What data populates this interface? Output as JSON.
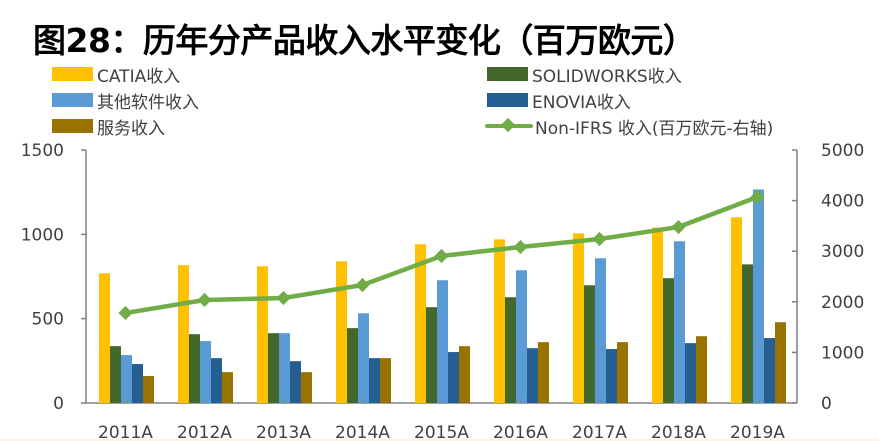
{
  "title": "图28：历年分产品收入水平变化（百万欧元）",
  "legend": {
    "catia": "CATIA收入",
    "other": "其他软件收入",
    "services": "服务收入",
    "solidworks": "SOLIDWORKS收入",
    "enovia": "ENOVIA收入",
    "nonifrs": "Non-IFRS 收入(百万欧元-右轴)"
  },
  "colors": {
    "catia": "#FFC000",
    "solidworks": "#43682B",
    "other": "#5B9BD5",
    "enovia": "#255E91",
    "services": "#997300",
    "nonifrs": "#70AD47",
    "axis": "#808080",
    "text": "#404040"
  },
  "chart_data": {
    "type": "bar",
    "title": "图28：历年分产品收入水平变化（百万欧元）",
    "xlabel": "",
    "ylabel": "",
    "categories": [
      "2011A",
      "2012A",
      "2013A",
      "2014A",
      "2015A",
      "2016A",
      "2017A",
      "2018A",
      "2019A"
    ],
    "series": [
      {
        "name": "CATIA收入",
        "type": "bar",
        "axis": "left",
        "values": [
          769,
          817,
          811,
          840,
          941,
          970,
          1006,
          1040,
          1101
        ]
      },
      {
        "name": "SOLIDWORKS收入",
        "type": "bar",
        "axis": "left",
        "values": [
          337,
          408,
          414,
          444,
          568,
          627,
          698,
          740,
          822
        ]
      },
      {
        "name": "其他软件收入",
        "type": "bar",
        "axis": "left",
        "values": [
          284,
          367,
          414,
          532,
          728,
          787,
          858,
          959,
          1266
        ]
      },
      {
        "name": "ENOVIA收入",
        "type": "bar",
        "axis": "left",
        "values": [
          231,
          266,
          248,
          266,
          302,
          325,
          320,
          355,
          385
        ]
      },
      {
        "name": "服务收入",
        "type": "bar",
        "axis": "left",
        "values": [
          160,
          183,
          183,
          266,
          337,
          361,
          361,
          396,
          479
        ]
      },
      {
        "name": "Non-IFRS 收入(百万欧元-右轴)",
        "type": "line",
        "axis": "right",
        "values": [
          1779,
          2036,
          2075,
          2332,
          2905,
          3083,
          3241,
          3478,
          4071
        ]
      }
    ],
    "ylim": [
      0,
      1500
    ],
    "yticks": [
      0,
      500,
      1000,
      1500
    ],
    "y2lim": [
      0,
      5000
    ],
    "y2ticks": [
      0,
      1000,
      2000,
      3000,
      4000,
      5000
    ],
    "grid": false,
    "legend_position": "top"
  }
}
